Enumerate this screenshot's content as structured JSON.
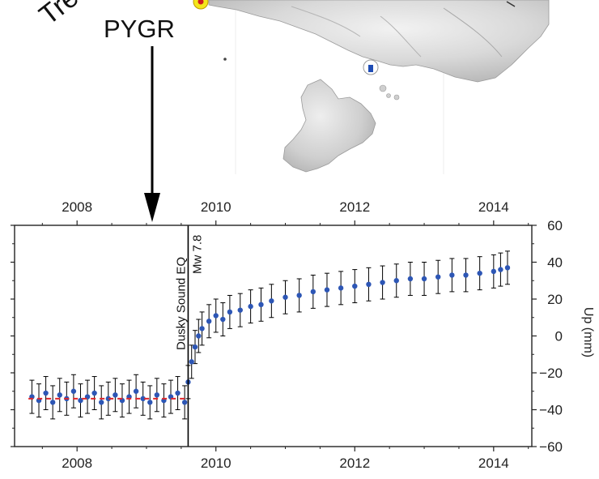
{
  "map": {
    "partial_label": "Tren",
    "station_label": "PYGR"
  },
  "chart_data": {
    "type": "scatter",
    "title": "",
    "xlabel": "",
    "ylabel": "Up (mm)",
    "xlim": [
      2007.1,
      2014.55
    ],
    "ylim": [
      -60,
      60
    ],
    "x_ticks": [
      2008,
      2010,
      2012,
      2014
    ],
    "x_tick_labels": [
      "2008",
      "2010",
      "2012",
      "2014"
    ],
    "y_ticks": [
      -60,
      -40,
      -20,
      0,
      20,
      40,
      60
    ],
    "y_tick_labels": [
      "−60",
      "−40",
      "−20",
      "0",
      "20",
      "40",
      "60"
    ],
    "grid": false,
    "legend": "none",
    "series": [
      {
        "x": [
          2007.35,
          2007.45,
          2007.55,
          2007.65,
          2007.75,
          2007.85,
          2007.95,
          2008.05,
          2008.15,
          2008.25,
          2008.35,
          2008.45,
          2008.55,
          2008.65,
          2008.75,
          2008.85,
          2008.95,
          2009.05,
          2009.15,
          2009.25,
          2009.35,
          2009.45,
          2009.55,
          2009.6,
          2009.65,
          2009.7,
          2009.75,
          2009.8,
          2009.9,
          2010.0,
          2010.1,
          2010.2,
          2010.35,
          2010.5,
          2010.65,
          2010.8,
          2011.0,
          2011.2,
          2011.4,
          2011.6,
          2011.8,
          2012.0,
          2012.2,
          2012.4,
          2012.6,
          2012.8,
          2013.0,
          2013.2,
          2013.4,
          2013.6,
          2013.8,
          2014.0,
          2014.1,
          2014.2
        ],
        "y": [
          -33,
          -35,
          -31,
          -36,
          -32,
          -34,
          -30,
          -35,
          -33,
          -31,
          -36,
          -34,
          -32,
          -35,
          -33,
          -30,
          -34,
          -36,
          -32,
          -35,
          -33,
          -31,
          -36,
          -25,
          -14,
          -6,
          0,
          4,
          8,
          11,
          9,
          13,
          14,
          16,
          17,
          19,
          21,
          22,
          24,
          25,
          26,
          27,
          28,
          29,
          30,
          31,
          31,
          32,
          33,
          33,
          34,
          35,
          36,
          37
        ],
        "error": 9,
        "color": "#2d56b5",
        "errorbar_color": "#000000"
      }
    ],
    "reference_line": {
      "x_start": 2007.3,
      "x_end": 2009.6,
      "y": -34,
      "color": "#e0262b",
      "style": "dashed"
    },
    "event": {
      "x": 2009.6,
      "label": "Dusky Sound EQ",
      "sublabel": "Mw 7.8"
    }
  }
}
